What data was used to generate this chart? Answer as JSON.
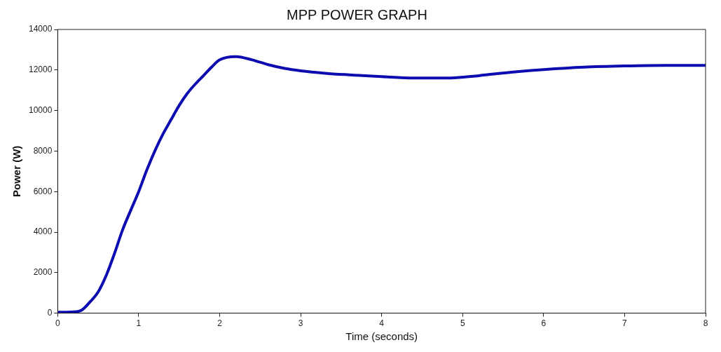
{
  "chart_data": {
    "type": "line",
    "title": "MPP POWER GRAPH",
    "xlabel": "Time (seconds)",
    "ylabel": "Power (W)",
    "xlim": [
      0,
      8
    ],
    "xticks": [
      0,
      1,
      2,
      3,
      4,
      5,
      6,
      7,
      8
    ],
    "ylim": [
      0,
      14000
    ],
    "yticks": [
      0,
      2000,
      4000,
      6000,
      8000,
      10000,
      12000,
      14000
    ],
    "grid": false,
    "legend": false,
    "marker": "none",
    "line_style": "solid",
    "series": [
      {
        "color": "#0c0cb0",
        "x": [
          0,
          0.1,
          0.2,
          0.3,
          0.4,
          0.5,
          0.6,
          0.7,
          0.8,
          0.9,
          1.0,
          1.1,
          1.2,
          1.3,
          1.4,
          1.5,
          1.6,
          1.7,
          1.8,
          1.9,
          2.0,
          2.2,
          2.4,
          2.6,
          2.8,
          3.0,
          3.3,
          3.6,
          4.0,
          4.4,
          4.8,
          5.2,
          5.6,
          6.0,
          6.5,
          7.0,
          7.5,
          8.0
        ],
        "values": [
          50,
          50,
          60,
          160,
          560,
          1050,
          1870,
          2930,
          4100,
          5060,
          6000,
          7060,
          8010,
          8840,
          9550,
          10250,
          10840,
          11310,
          11720,
          12140,
          12500,
          12660,
          12500,
          12260,
          12080,
          11960,
          11840,
          11760,
          11670,
          11600,
          11600,
          11720,
          11890,
          12020,
          12140,
          12200,
          12230,
          12230
        ]
      }
    ]
  }
}
